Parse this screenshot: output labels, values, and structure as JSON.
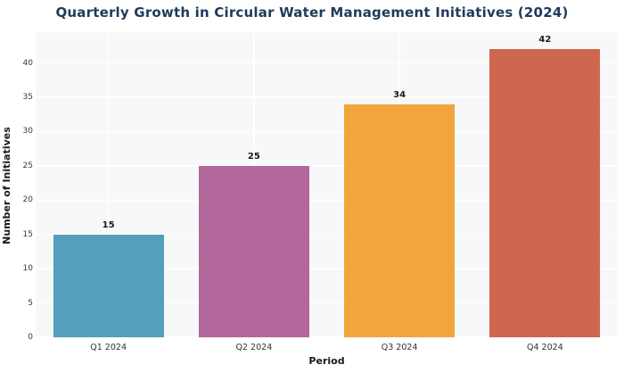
{
  "chart_data": {
    "type": "bar",
    "title": "Quarterly Growth in Circular Water Management Initiatives (2024)",
    "xlabel": "Period",
    "ylabel": "Number of Initiatives",
    "categories": [
      "Q1 2024",
      "Q2 2024",
      "Q3 2024",
      "Q4 2024"
    ],
    "values": [
      15,
      25,
      34,
      42
    ],
    "bar_colors": [
      "#539fbd",
      "#b2689b",
      "#f1a53c",
      "#cf674e"
    ],
    "yticks": [
      0,
      5,
      10,
      15,
      20,
      25,
      30,
      35,
      40
    ],
    "ylim": [
      0,
      44.5
    ],
    "grid": "on",
    "legend": "none",
    "colors": {
      "plot_background": "#f7f8fa",
      "page_background": "#ffffff",
      "gridline": "#ffffff",
      "title_text": "#1f3a5c",
      "axis_label_text": "#1a1a1a",
      "tick_text": "#3a3a3a",
      "value_label_text": "#1a1a1a"
    }
  }
}
